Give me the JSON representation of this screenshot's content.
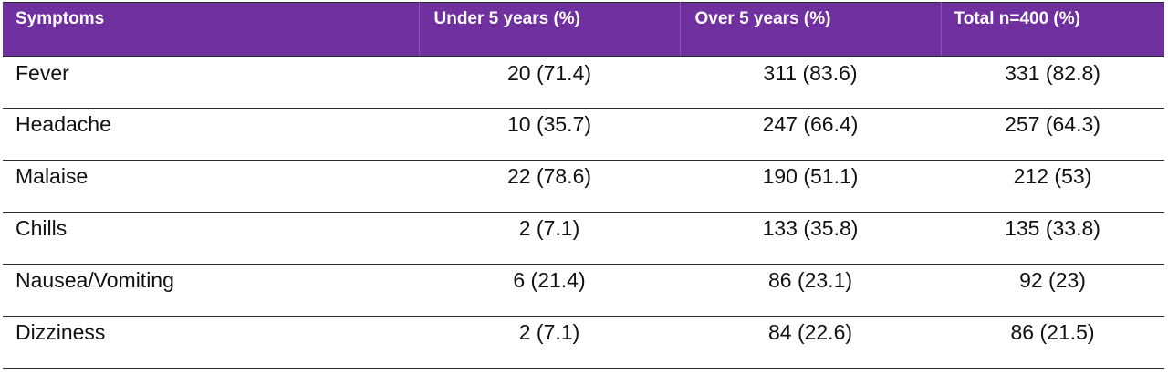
{
  "table": {
    "headers": {
      "symptoms": "Symptoms",
      "under5": "Under 5 years (%)",
      "over5": "Over 5 years (%)",
      "total": "Total n=400 (%)"
    },
    "rows": [
      {
        "symptom": "Fever",
        "under5": "20 (71.4)",
        "over5": "311 (83.6)",
        "total": "331 (82.8)"
      },
      {
        "symptom": "Headache",
        "under5": "10 (35.7)",
        "over5": "247 (66.4)",
        "total": "257 (64.3)"
      },
      {
        "symptom": "Malaise",
        "under5": "22 (78.6)",
        "over5": "190 (51.1)",
        "total": "212 (53)"
      },
      {
        "symptom": "Chills",
        "under5": "2 (7.1)",
        "over5": "133 (35.8)",
        "total": "135 (33.8)"
      },
      {
        "symptom": "Nausea/Vomiting",
        "under5": "6 (21.4)",
        "over5": "86 (23.1)",
        "total": "92 (23)"
      },
      {
        "symptom": "Dizziness",
        "under5": "2 (7.1)",
        "over5": "84 (22.6)",
        "total": "86 (21.5)"
      }
    ]
  },
  "colors": {
    "header_bg": "#7030a0",
    "header_text": "#ffffff"
  }
}
